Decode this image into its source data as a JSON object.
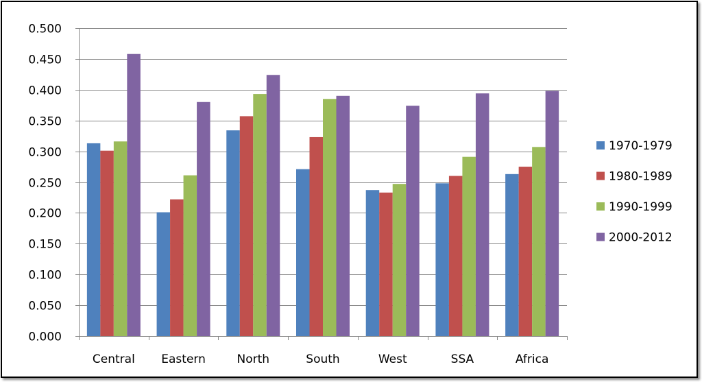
{
  "chart_data": {
    "type": "bar",
    "categories": [
      "Central",
      "Eastern",
      "North",
      "South",
      "West",
      "SSA",
      "Africa"
    ],
    "series": [
      {
        "name": "1970-1979",
        "color": "#4F81BD",
        "values": [
          0.313,
          0.201,
          0.334,
          0.271,
          0.237,
          0.248,
          0.263
        ]
      },
      {
        "name": "1980-1989",
        "color": "#C0504D",
        "values": [
          0.301,
          0.222,
          0.357,
          0.323,
          0.233,
          0.26,
          0.275
        ]
      },
      {
        "name": "1990-1999",
        "color": "#9BBB59",
        "values": [
          0.316,
          0.261,
          0.393,
          0.385,
          0.247,
          0.291,
          0.307
        ]
      },
      {
        "name": "2000-2012",
        "color": "#8064A2",
        "values": [
          0.458,
          0.38,
          0.424,
          0.39,
          0.374,
          0.394,
          0.398
        ]
      }
    ],
    "yticks": [
      "0.000",
      "0.050",
      "0.100",
      "0.150",
      "0.200",
      "0.250",
      "0.300",
      "0.350",
      "0.400",
      "0.450",
      "0.500"
    ],
    "ylim": [
      0,
      0.5
    ],
    "grid": true,
    "legend_position": "right",
    "title": "",
    "xlabel": "",
    "ylabel": ""
  }
}
